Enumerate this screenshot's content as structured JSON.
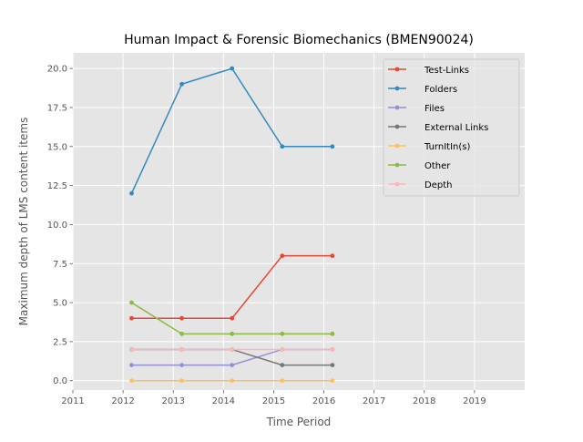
{
  "chart_data": {
    "type": "line",
    "title": "Human Impact & Forensic Biomechanics (BMEN90024)",
    "xlabel": "Time Period",
    "ylabel": "Maximum depth of LMS content items",
    "xlim": [
      2011,
      2020
    ],
    "ylim": [
      -0.6,
      21.0
    ],
    "x_ticks": [
      2011,
      2012,
      2013,
      2014,
      2015,
      2016,
      2017,
      2018,
      2019
    ],
    "x_tick_labels": [
      "2011",
      "2012",
      "2013",
      "2014",
      "2015",
      "2016",
      "2017",
      "2018",
      "2019"
    ],
    "y_ticks": [
      0.0,
      2.5,
      5.0,
      7.5,
      10.0,
      12.5,
      15.0,
      17.5,
      20.0
    ],
    "y_tick_labels": [
      "0.0",
      "2.5",
      "5.0",
      "7.5",
      "10.0",
      "12.5",
      "15.0",
      "17.5",
      "20.0"
    ],
    "grid": true,
    "legend_position": "top-right",
    "x": [
      2012.17,
      2013.17,
      2014.17,
      2015.17,
      2016.17
    ],
    "series": [
      {
        "name": "Test-Links",
        "color": "#E24A33",
        "values": [
          4,
          4,
          4,
          8,
          8
        ]
      },
      {
        "name": "Folders",
        "color": "#348ABD",
        "values": [
          12,
          19,
          20,
          15,
          15
        ]
      },
      {
        "name": "Files",
        "color": "#988ED5",
        "values": [
          1,
          1,
          1,
          2,
          2
        ]
      },
      {
        "name": "External Links",
        "color": "#777777",
        "values": [
          2,
          2,
          2,
          1,
          1
        ]
      },
      {
        "name": "TurnItIn(s)",
        "color": "#FBC15E",
        "values": [
          0,
          0,
          0,
          0,
          0
        ]
      },
      {
        "name": "Other",
        "color": "#8EBA42",
        "values": [
          5,
          3,
          3,
          3,
          3
        ]
      },
      {
        "name": "Depth",
        "color": "#FFB5B8",
        "values": [
          2,
          2,
          2,
          2,
          2
        ]
      }
    ]
  }
}
